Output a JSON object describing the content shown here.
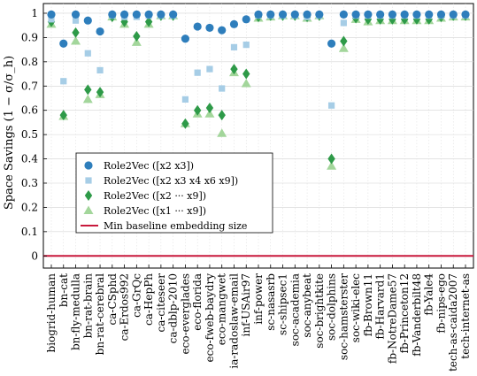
{
  "chart_data": {
    "type": "scatter",
    "title": "",
    "xlabel": "",
    "ylabel": "Space Savings  (1 − σ/σ_h)",
    "ylim": [
      -0.05,
      1.04
    ],
    "yticks": [
      0,
      0.1,
      0.2,
      0.3,
      0.4,
      0.5,
      0.6,
      0.7,
      0.8,
      0.9,
      1
    ],
    "ytick_labels": [
      "0",
      "0.1",
      "0.2",
      "0.3",
      "0.4",
      "0.5",
      "0.6",
      "0.7",
      "0.8",
      "0.9",
      "1"
    ],
    "grid": true,
    "legend_position": "center-left",
    "categories": [
      "biogrid-human",
      "bn-cat",
      "bn-fly-medulla",
      "bn-rat-brain",
      "bn-rat-cerebral",
      "ca-CSphd",
      "ca-Erdos992",
      "ca-GrQc",
      "ca-HepPh",
      "ca-citeseer",
      "ca-dblp-2010",
      "eco-everglades",
      "eco-florida",
      "eco-fweb-baydry",
      "eco-mangwet",
      "ia-radoslaw-email",
      "inf-USAir97",
      "inf-power",
      "sc-nasasrb",
      "sc-shipsec1",
      "soc-academia",
      "soc-anybeat",
      "soc-brightkite",
      "soc-dolphins",
      "soc-hamsterster",
      "soc-wiki-elec",
      "fb-Brown11",
      "fb-Harvard1",
      "fb-NotreDame57",
      "fb-Princeton12",
      "fb-Vanderbilt48",
      "fb-Yale4",
      "fb-nips-ego",
      "tech-as-caida2007",
      "tech-internet-as"
    ],
    "series": [
      {
        "name": "Role2Vec ([x2 x3])",
        "marker": "circle",
        "color": "#2e7ebc",
        "values": [
          0.995,
          0.875,
          0.995,
          0.97,
          0.925,
          0.995,
          0.995,
          0.995,
          0.995,
          0.995,
          0.995,
          0.895,
          0.945,
          0.94,
          0.93,
          0.955,
          0.975,
          0.995,
          0.995,
          0.995,
          0.995,
          0.995,
          0.995,
          0.875,
          0.995,
          0.995,
          0.995,
          0.995,
          0.995,
          0.995,
          0.995,
          0.995,
          0.995,
          0.995,
          0.995
        ]
      },
      {
        "name": "Role2Vec ([x2 x3 x4 x6 x9])",
        "marker": "square",
        "color": "#a6cde6",
        "values": [
          0.975,
          0.72,
          0.97,
          0.835,
          0.765,
          0.99,
          0.985,
          0.985,
          0.99,
          0.99,
          0.99,
          0.645,
          0.755,
          0.77,
          0.69,
          0.86,
          0.87,
          0.99,
          0.99,
          0.99,
          0.99,
          0.985,
          0.99,
          0.62,
          0.96,
          0.99,
          0.99,
          0.99,
          0.99,
          0.99,
          0.99,
          0.99,
          0.99,
          0.99,
          0.99
        ]
      },
      {
        "name": "Role2Vec ([x2 ··· x9])",
        "marker": "diamond",
        "color": "#2e9a48",
        "values": [
          0.965,
          0.58,
          0.92,
          0.685,
          0.675,
          0.985,
          0.965,
          0.905,
          0.965,
          0.99,
          0.99,
          0.545,
          0.6,
          0.61,
          0.58,
          0.77,
          0.75,
          0.985,
          0.99,
          0.99,
          0.99,
          0.985,
          0.99,
          0.4,
          0.885,
          0.98,
          0.975,
          0.975,
          0.975,
          0.975,
          0.975,
          0.975,
          0.985,
          0.99,
          0.99
        ]
      },
      {
        "name": "Role2Vec ([x1 ··· x9])",
        "marker": "triangle",
        "color": "#a3d69b",
        "values": [
          0.955,
          0.575,
          0.885,
          0.645,
          0.665,
          0.985,
          0.955,
          0.88,
          0.955,
          0.99,
          0.99,
          0.545,
          0.585,
          0.585,
          0.505,
          0.755,
          0.71,
          0.98,
          0.985,
          0.99,
          0.99,
          0.98,
          0.99,
          0.37,
          0.855,
          0.975,
          0.965,
          0.97,
          0.97,
          0.97,
          0.97,
          0.97,
          0.98,
          0.985,
          0.985
        ]
      }
    ],
    "baseline": {
      "name": "Min baseline embedding size",
      "value": 0,
      "color": "#c8193c"
    },
    "legend_entries": [
      "Role2Vec ([x2 x3])",
      "Role2Vec ([x2 x3 x4 x6 x9])",
      "Role2Vec ([x2 ··· x9])",
      "Role2Vec ([x1 ··· x9])",
      "Min baseline embedding size"
    ]
  }
}
